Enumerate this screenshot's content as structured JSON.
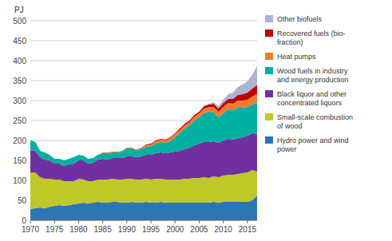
{
  "chart_data": {
    "type": "area",
    "stacked": true,
    "ylabel": "PJ",
    "x": [
      1970,
      1971,
      1972,
      1973,
      1974,
      1975,
      1976,
      1977,
      1978,
      1979,
      1980,
      1981,
      1982,
      1983,
      1984,
      1985,
      1986,
      1987,
      1988,
      1989,
      1990,
      1991,
      1992,
      1993,
      1994,
      1995,
      1996,
      1997,
      1998,
      1999,
      2000,
      2001,
      2002,
      2003,
      2004,
      2005,
      2006,
      2007,
      2008,
      2009,
      2010,
      2011,
      2012,
      2013,
      2014,
      2015,
      2016,
      2017
    ],
    "series": [
      {
        "name": "Hydro power and wind\npower",
        "color": "#2e75b6",
        "values": [
          28,
          30,
          32,
          30,
          34,
          36,
          38,
          36,
          38,
          40,
          42,
          44,
          42,
          44,
          46,
          44,
          44,
          46,
          46,
          44,
          44,
          46,
          44,
          44,
          46,
          44,
          44,
          46,
          44,
          44,
          44,
          44,
          44,
          44,
          44,
          44,
          44,
          44,
          46,
          44,
          46,
          46,
          46,
          46,
          46,
          46,
          50,
          62
        ]
      },
      {
        "name": "Small-scale combustion\nof wood",
        "color": "#bec928",
        "values": [
          92,
          90,
          76,
          74,
          70,
          66,
          64,
          62,
          60,
          58,
          62,
          58,
          56,
          54,
          56,
          58,
          58,
          58,
          56,
          58,
          60,
          58,
          58,
          58,
          58,
          58,
          60,
          58,
          58,
          58,
          58,
          58,
          60,
          60,
          62,
          62,
          64,
          62,
          64,
          64,
          66,
          68,
          68,
          70,
          72,
          74,
          76,
          60
        ]
      },
      {
        "name": "Black liquor and other\nconcentrated liquors",
        "color": "#7030a0",
        "values": [
          55,
          55,
          50,
          48,
          46,
          40,
          40,
          38,
          42,
          44,
          46,
          48,
          44,
          46,
          50,
          52,
          50,
          52,
          54,
          54,
          56,
          56,
          56,
          58,
          60,
          62,
          64,
          66,
          66,
          68,
          70,
          72,
          74,
          78,
          82,
          86,
          88,
          90,
          88,
          86,
          88,
          90,
          88,
          90,
          90,
          92,
          92,
          95
        ]
      },
      {
        "name": "Wood fuels in industry\nand energy production",
        "color": "#00b0a0",
        "values": [
          25,
          22,
          16,
          18,
          14,
          12,
          12,
          14,
          14,
          16,
          14,
          12,
          12,
          12,
          12,
          14,
          16,
          14,
          14,
          16,
          20,
          20,
          18,
          18,
          20,
          22,
          24,
          26,
          26,
          28,
          36,
          44,
          52,
          56,
          62,
          66,
          72,
          76,
          72,
          64,
          68,
          74,
          74,
          76,
          74,
          72,
          72,
          78
        ]
      },
      {
        "name": "Heat pumps",
        "color": "#ed7d31",
        "values": [
          0,
          0,
          0,
          0,
          0,
          0,
          0,
          0,
          0,
          0,
          0,
          0,
          0,
          0,
          0,
          2,
          2,
          2,
          2,
          2,
          2,
          2,
          2,
          4,
          4,
          4,
          6,
          6,
          6,
          8,
          8,
          8,
          8,
          8,
          10,
          10,
          12,
          12,
          14,
          14,
          16,
          16,
          16,
          18,
          18,
          18,
          20,
          22
        ]
      },
      {
        "name": "Recovered fuels (bio-\nfraction)",
        "color": "#c00000",
        "values": [
          0,
          0,
          0,
          0,
          0,
          0,
          0,
          0,
          0,
          0,
          0,
          0,
          0,
          0,
          0,
          0,
          0,
          0,
          0,
          0,
          0,
          0,
          0,
          0,
          2,
          2,
          2,
          2,
          2,
          2,
          2,
          4,
          4,
          4,
          4,
          4,
          6,
          6,
          8,
          8,
          10,
          10,
          12,
          14,
          16,
          18,
          20,
          22
        ]
      },
      {
        "name": "Other biofuels",
        "color": "#aab4d4",
        "values": [
          0,
          0,
          0,
          0,
          0,
          0,
          0,
          0,
          0,
          0,
          0,
          0,
          0,
          0,
          0,
          0,
          0,
          0,
          0,
          0,
          0,
          0,
          0,
          0,
          0,
          0,
          0,
          0,
          0,
          0,
          0,
          0,
          0,
          0,
          0,
          0,
          2,
          2,
          4,
          6,
          8,
          12,
          16,
          20,
          24,
          28,
          34,
          48
        ]
      }
    ],
    "xlim": [
      1970,
      2017
    ],
    "xticks": [
      1970,
      1975,
      1980,
      1985,
      1990,
      1995,
      2000,
      2005,
      2010,
      2015
    ],
    "ylim": [
      0,
      500
    ],
    "yticks": [
      0,
      50,
      100,
      150,
      200,
      250,
      300,
      350,
      400,
      450,
      500
    ],
    "grid": true,
    "legend": "right"
  }
}
